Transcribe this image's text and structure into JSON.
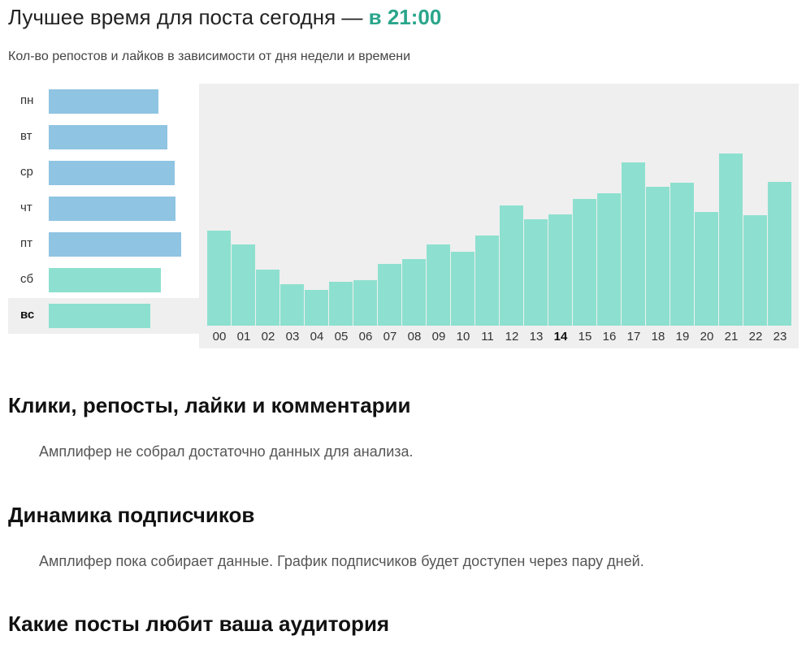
{
  "header": {
    "title_prefix": "Лучшее время для поста сегодня —",
    "title_accent": "в 21:00",
    "subtitle": "Кол-во репостов и лайков в зависимости от дня недели и времени"
  },
  "colors": {
    "blue_bar": "#8fc4e2",
    "teal_bar": "#8de0cf",
    "accent": "#2aa58b",
    "panel_bg": "#efefef"
  },
  "chart_data": [
    {
      "type": "bar",
      "orientation": "horizontal",
      "categories": [
        "пн",
        "вт",
        "ср",
        "чт",
        "пт",
        "сб",
        "вс"
      ],
      "values": [
        135,
        146,
        155,
        156,
        163,
        138,
        125
      ],
      "highlighted": "вс",
      "bar_colors": [
        "#8fc4e2",
        "#8fc4e2",
        "#8fc4e2",
        "#8fc4e2",
        "#8fc4e2",
        "#8de0cf",
        "#8de0cf"
      ]
    },
    {
      "type": "bar",
      "categories": [
        "00",
        "01",
        "02",
        "03",
        "04",
        "05",
        "06",
        "07",
        "08",
        "09",
        "10",
        "11",
        "12",
        "13",
        "14",
        "15",
        "16",
        "17",
        "18",
        "19",
        "20",
        "21",
        "22",
        "23"
      ],
      "values": [
        117,
        100,
        69,
        51,
        44,
        54,
        56,
        76,
        82,
        100,
        91,
        111,
        148,
        131,
        137,
        156,
        163,
        201,
        171,
        176,
        140,
        212,
        136,
        177
      ],
      "highlighted": "14",
      "color": "#8de0cf"
    }
  ],
  "sections": [
    {
      "title": "Клики, репосты, лайки и комментарии",
      "text": "Амплифер не собрал достаточно данных для анализа."
    },
    {
      "title": "Динамика подписчиков",
      "text": "Амплифер пока собирает данные. График подписчиков будет доступен через пару дней."
    },
    {
      "title": "Какие посты любит ваша аудитория"
    }
  ]
}
